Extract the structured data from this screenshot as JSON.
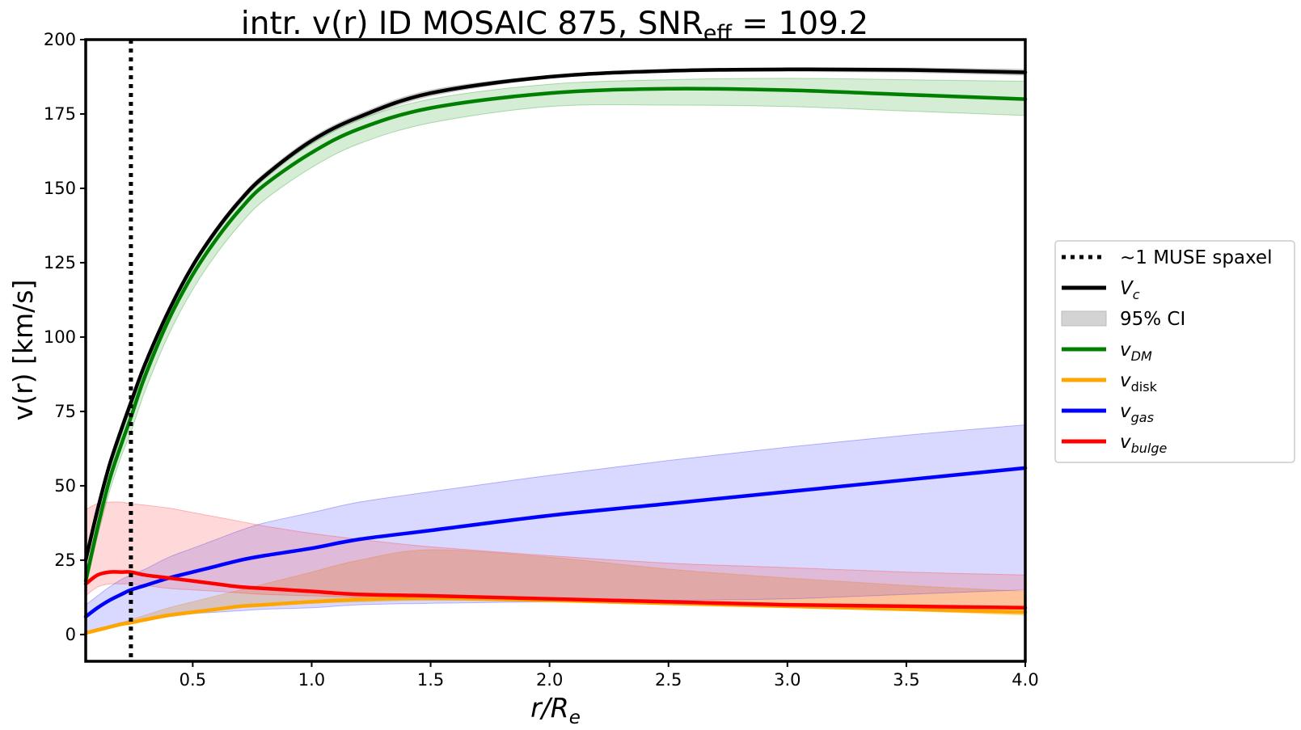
{
  "chart_data": {
    "type": "line",
    "title_main": "intr. v(r) ID MOSAIC 875, SNR",
    "title_sub": "eff",
    "title_value": " = 109.2",
    "xlabel_var": "r/R",
    "xlabel_sub": "e",
    "ylabel": "v(r) [km/s]",
    "xlim": [
      0.05,
      4.0
    ],
    "ylim": [
      -9,
      200
    ],
    "xticks": [
      0.5,
      1.0,
      1.5,
      2.0,
      2.5,
      3.0,
      3.5,
      4.0
    ],
    "xtick_labels": [
      "0.5",
      "1.0",
      "1.5",
      "2.0",
      "2.5",
      "3.0",
      "3.5",
      "4.0"
    ],
    "yticks": [
      0,
      25,
      50,
      75,
      100,
      125,
      150,
      175,
      200
    ],
    "ytick_labels": [
      "0",
      "25",
      "50",
      "75",
      "100",
      "125",
      "150",
      "175",
      "200"
    ],
    "vline": {
      "x": 0.24,
      "label": "~1 MUSE spaxel",
      "color": "#000000",
      "style": "dotted"
    },
    "x": [
      0.05,
      0.1,
      0.15,
      0.2,
      0.24,
      0.3,
      0.4,
      0.5,
      0.6,
      0.7,
      0.8,
      1.0,
      1.2,
      1.5,
      2.0,
      2.5,
      3.0,
      3.5,
      4.0
    ],
    "series": [
      {
        "name": "V",
        "name_sub": "c",
        "color": "#000000",
        "values": [
          25,
          42,
          57,
          69,
          78,
          91,
          109,
          124,
          136,
          146,
          154,
          166,
          174,
          182,
          187.5,
          189.5,
          190,
          189.8,
          189
        ],
        "band_lower": [
          24,
          41,
          56,
          68,
          77,
          90,
          108,
          123,
          135,
          145,
          153,
          165,
          173,
          181,
          187,
          189,
          189.3,
          189,
          188
        ],
        "band_upper": [
          26,
          43,
          58,
          70,
          79,
          92,
          110,
          125,
          137,
          147,
          155,
          167,
          175,
          183,
          188,
          190,
          190.5,
          190.5,
          190
        ]
      },
      {
        "name": "v",
        "name_sub": "DM",
        "color": "#008000",
        "band_color": "#2ca02c",
        "values": [
          18,
          36,
          52,
          64,
          73,
          87,
          106,
          121,
          133,
          143,
          151,
          162,
          170,
          177,
          182,
          183.5,
          183,
          181.5,
          180
        ],
        "band_lower": [
          16,
          33,
          48,
          60,
          68,
          82,
          101,
          116,
          128,
          138,
          146,
          157,
          165,
          172,
          177.5,
          178,
          177.5,
          176,
          174.5
        ],
        "band_upper": [
          21,
          38,
          54,
          67,
          76,
          89,
          108,
          124,
          136,
          146,
          154,
          165,
          173,
          180,
          185,
          186.5,
          187,
          186.5,
          186
        ]
      },
      {
        "name": "v",
        "name_sub": "disk",
        "color": "#ffa500",
        "values": [
          0.5,
          1.5,
          2.5,
          3.5,
          4,
          5,
          6.5,
          7.5,
          8.5,
          9.5,
          10,
          11,
          11.8,
          12.2,
          11.5,
          10.5,
          9.5,
          8.5,
          7.5
        ],
        "band_lower": [
          0.3,
          1,
          2,
          3,
          3.5,
          4.5,
          6,
          7,
          8,
          9,
          9.5,
          10.5,
          11,
          11.5,
          11,
          10,
          9,
          8,
          6.5
        ],
        "band_upper": [
          1,
          2,
          3,
          4,
          5,
          6.5,
          9,
          11,
          13,
          15,
          17,
          21,
          25,
          28.5,
          26,
          22,
          19,
          16.5,
          14.5
        ]
      },
      {
        "name": "v",
        "name_sub": "gas",
        "color": "#0000ff",
        "values": [
          6,
          9,
          11.5,
          13.5,
          15,
          16.5,
          19,
          21,
          23,
          25,
          26.5,
          29,
          32,
          35,
          40,
          44,
          48,
          52,
          56
        ],
        "band_lower": [
          1,
          2,
          3,
          4,
          4.5,
          5,
          6,
          7,
          7.5,
          8,
          8.5,
          9,
          10,
          10.5,
          11,
          11.5,
          12,
          13.5,
          15
        ],
        "band_upper": [
          10,
          13,
          16,
          18.5,
          20,
          22,
          26,
          29,
          32,
          35,
          37.5,
          41,
          44.5,
          48,
          53.5,
          58.5,
          63,
          67,
          70.5
        ]
      },
      {
        "name": "v",
        "name_sub": "bulge",
        "color": "#ff0000",
        "values": [
          17,
          20,
          21,
          21,
          21,
          20,
          19,
          18,
          17,
          16,
          15.5,
          14.5,
          13.5,
          13,
          12,
          11,
          10,
          9.5,
          9
        ],
        "band_lower": [
          13,
          16,
          17,
          17,
          17,
          16.5,
          15.5,
          15,
          14.5,
          14,
          13.5,
          13,
          12.5,
          12,
          11.5,
          10.5,
          9.5,
          9,
          8.5
        ],
        "band_upper": [
          42,
          44,
          44.5,
          44.5,
          44,
          43.5,
          42.5,
          41,
          39.5,
          38,
          36.5,
          34,
          32,
          29.5,
          26.5,
          24,
          22.5,
          21,
          20
        ]
      }
    ],
    "band_label": "95% CI",
    "band_legend_color": "#d3d3d3",
    "legend_position": "center-right outside"
  }
}
